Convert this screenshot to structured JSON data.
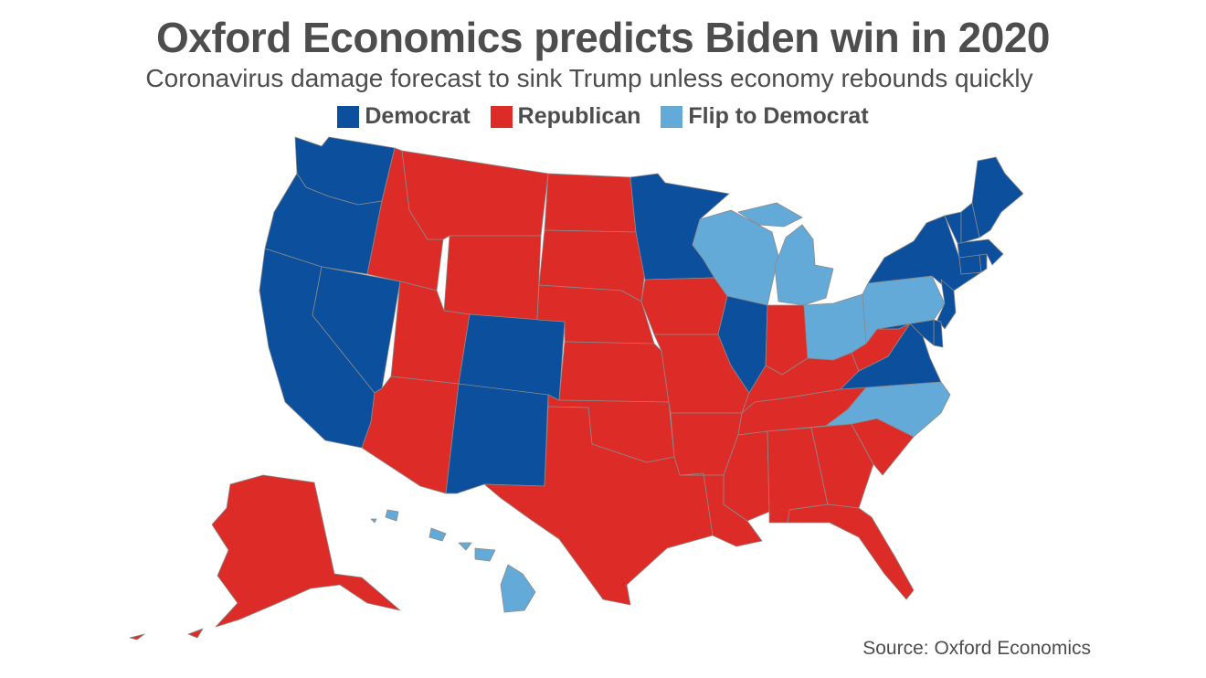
{
  "title": "Oxford Economics predicts Biden win in 2020",
  "subtitle": "Coronavirus damage forecast to sink Trump unless economy rebounds quickly",
  "legend": [
    {
      "label": "Democrat",
      "key": "dem"
    },
    {
      "label": "Republican",
      "key": "rep"
    },
    {
      "label": "Flip to Democrat",
      "key": "flip"
    }
  ],
  "colors": {
    "dem": "#0b4f9d",
    "rep": "#dd2c27",
    "flip": "#64aad8"
  },
  "source": "Source: Oxford Economics",
  "chart_data": {
    "type": "choropleth",
    "categories": [
      "Democrat",
      "Republican",
      "Flip to Democrat"
    ],
    "states": {
      "WA": "dem",
      "OR": "dem",
      "CA": "dem",
      "NV": "dem",
      "CO": "dem",
      "NM": "dem",
      "MN": "dem",
      "IL": "dem",
      "VA": "dem",
      "NY": "dem",
      "NJ": "dem",
      "DE": "dem",
      "MD": "dem",
      "CT": "dem",
      "RI": "dem",
      "MA": "dem",
      "VT": "dem",
      "NH": "dem",
      "ME": "dem",
      "ID": "rep",
      "MT": "rep",
      "WY": "rep",
      "UT": "rep",
      "AZ": "rep",
      "ND": "rep",
      "SD": "rep",
      "NE": "rep",
      "KS": "rep",
      "OK": "rep",
      "TX": "rep",
      "IA": "rep",
      "MO": "rep",
      "AR": "rep",
      "LA": "rep",
      "MS": "rep",
      "AL": "rep",
      "TN": "rep",
      "KY": "rep",
      "IN": "rep",
      "WV": "rep",
      "SC": "rep",
      "GA": "rep",
      "FL": "rep",
      "AK": "rep",
      "WI": "flip",
      "MI": "flip",
      "OH": "flip",
      "PA": "flip",
      "NC": "flip",
      "HI": "flip"
    }
  }
}
